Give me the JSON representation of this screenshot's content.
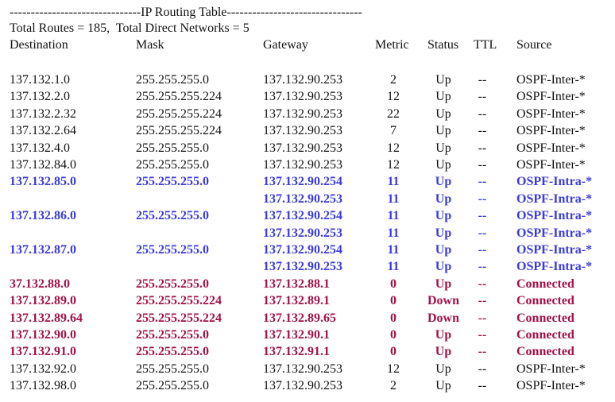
{
  "title": "-------------------------------IP Routing Table--------------------------------",
  "summary": "Total Routes = 185,  Total Direct Networks = 5",
  "columns": {
    "destination": "Destination",
    "mask": "Mask",
    "gateway": "Gateway",
    "metric": "Metric",
    "status": "Status",
    "ttl": "TTL",
    "source": "Source"
  },
  "colors": {
    "ospf_intra": "#3a3adf",
    "connected": "#a0124a",
    "default": "#111111"
  },
  "routes": [
    {
      "destination": "137.132.1.0",
      "mask": "255.255.255.0",
      "gateway": "137.132.90.253",
      "metric": "2",
      "status": "Up",
      "ttl": "--",
      "source": "OSPF-Inter-*",
      "kind": "ospf-inter"
    },
    {
      "destination": "137.132.2.0",
      "mask": "255.255.255.224",
      "gateway": "137.132.90.253",
      "metric": "12",
      "status": "Up",
      "ttl": "--",
      "source": "OSPF-Inter-*",
      "kind": "ospf-inter"
    },
    {
      "destination": "137.132.2.32",
      "mask": "255.255.255.224",
      "gateway": "137.132.90.253",
      "metric": "22",
      "status": "Up",
      "ttl": "--",
      "source": "OSPF-Inter-*",
      "kind": "ospf-inter"
    },
    {
      "destination": "137.132.2.64",
      "mask": "255.255.255.224",
      "gateway": "137.132.90.253",
      "metric": "7",
      "status": "Up",
      "ttl": "--",
      "source": "OSPF-Inter-*",
      "kind": "ospf-inter"
    },
    {
      "destination": "137.132.4.0",
      "mask": "255.255.255.0",
      "gateway": "137.132.90.253",
      "metric": "12",
      "status": "Up",
      "ttl": "--",
      "source": "OSPF-Inter-*",
      "kind": "ospf-inter"
    },
    {
      "destination": "137.132.84.0",
      "mask": "255.255.255.0",
      "gateway": "137.132.90.253",
      "metric": "12",
      "status": "Up",
      "ttl": "--",
      "source": "OSPF-Inter-*",
      "kind": "ospf-inter"
    },
    {
      "destination": "137.132.85.0",
      "mask": "255.255.255.0",
      "gateway": "137.132.90.254",
      "metric": "11",
      "status": "Up",
      "ttl": "--",
      "source": "OSPF-Intra-*",
      "kind": "ospf-intra"
    },
    {
      "destination": "",
      "mask": "",
      "gateway": "137.132.90.253",
      "metric": "11",
      "status": "Up",
      "ttl": "--",
      "source": "OSPF-Intra-*",
      "kind": "ospf-intra"
    },
    {
      "destination": "137.132.86.0",
      "mask": "255.255.255.0",
      "gateway": "137.132.90.254",
      "metric": "11",
      "status": "Up",
      "ttl": "--",
      "source": "OSPF-Intra-*",
      "kind": "ospf-intra"
    },
    {
      "destination": "",
      "mask": "",
      "gateway": "137.132.90.253",
      "metric": "11",
      "status": "Up",
      "ttl": "--",
      "source": "OSPF-Intra-*",
      "kind": "ospf-intra"
    },
    {
      "destination": "137.132.87.0",
      "mask": "255.255.255.0",
      "gateway": "137.132.90.254",
      "metric": "11",
      "status": "Up",
      "ttl": "--",
      "source": "OSPF-Intra-*",
      "kind": "ospf-intra"
    },
    {
      "destination": "",
      "mask": "",
      "gateway": "137.132.90.253",
      "metric": "11",
      "status": "Up",
      "ttl": "--",
      "source": "OSPF-Intra-*",
      "kind": "ospf-intra"
    },
    {
      "destination": "37.132.88.0",
      "mask": "255.255.255.0",
      "gateway": "137.132.88.1",
      "metric": "0",
      "status": "Up",
      "ttl": "--",
      "source": "Connected",
      "kind": "connected"
    },
    {
      "destination": "137.132.89.0",
      "mask": "255.255.255.224",
      "gateway": "137.132.89.1",
      "metric": "0",
      "status": "Down",
      "ttl": "--",
      "source": "Connected",
      "kind": "connected"
    },
    {
      "destination": "137.132.89.64",
      "mask": "255.255.255.224",
      "gateway": "137.132.89.65",
      "metric": "0",
      "status": "Down",
      "ttl": "--",
      "source": "Connected",
      "kind": "connected"
    },
    {
      "destination": "137.132.90.0",
      "mask": "255.255.255.0",
      "gateway": "137.132.90.1",
      "metric": "0",
      "status": "Up",
      "ttl": "--",
      "source": "Connected",
      "kind": "connected"
    },
    {
      "destination": "137.132.91.0",
      "mask": "255.255.255.0",
      "gateway": "137.132.91.1",
      "metric": "0",
      "status": "Up",
      "ttl": "--",
      "source": "Connected",
      "kind": "connected"
    },
    {
      "destination": "137.132.92.0",
      "mask": "255.255.255.0",
      "gateway": "137.132.90.253",
      "metric": "12",
      "status": "Up",
      "ttl": "--",
      "source": "OSPF-Inter-*",
      "kind": "ospf-inter"
    },
    {
      "destination": "137.132.98.0",
      "mask": "255.255.255.0",
      "gateway": "137.132.90.253",
      "metric": "2",
      "status": "Up",
      "ttl": "--",
      "source": "OSPF-Inter-*",
      "kind": "ospf-inter"
    }
  ]
}
